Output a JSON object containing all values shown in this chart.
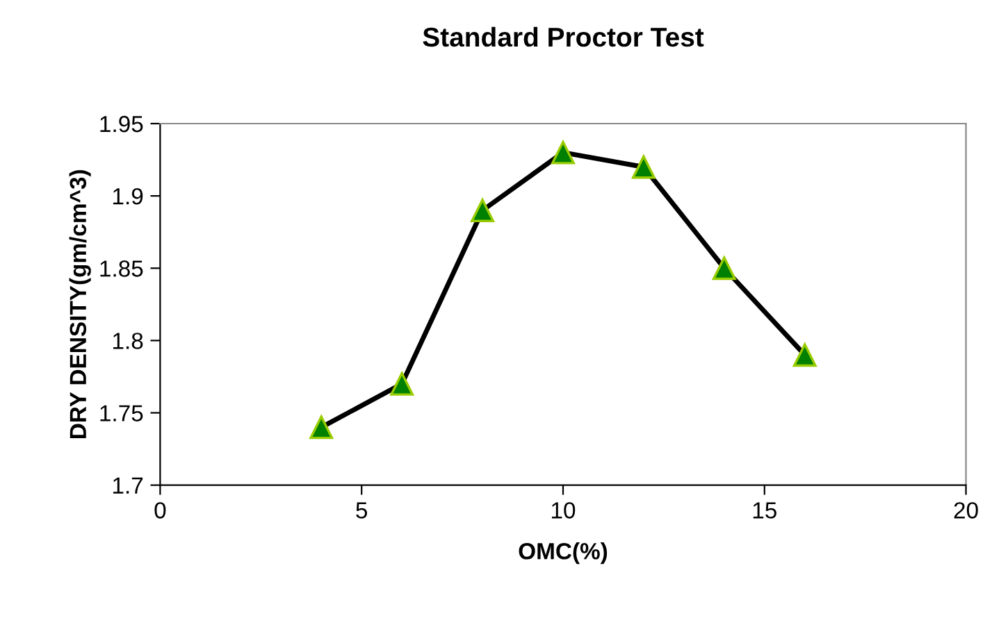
{
  "chart_data": {
    "type": "line",
    "title": "Standard Proctor Test",
    "xlabel": "OMC(%)",
    "ylabel": "DRY DENSITY(gm/cm^3)",
    "x": [
      4,
      6,
      8,
      10,
      12,
      14,
      16
    ],
    "series": [
      {
        "color": "#000000",
        "colors": [
          "#008000",
          "#008000",
          "#008000",
          "#008000",
          "#008000",
          "#008000",
          "#008000"
        ],
        "values": [
          1.74,
          1.77,
          1.89,
          1.93,
          1.92,
          1.85,
          1.79
        ]
      }
    ],
    "xlim": [
      0,
      20
    ],
    "xticks": [
      0,
      5,
      10,
      15,
      20
    ],
    "ylim": [
      1.7,
      1.95
    ],
    "yticks": [
      1.7,
      1.75,
      1.8,
      1.85,
      1.9,
      1.95
    ],
    "marker": "triangle",
    "line_style": "solid",
    "grid": false,
    "legend": false
  }
}
